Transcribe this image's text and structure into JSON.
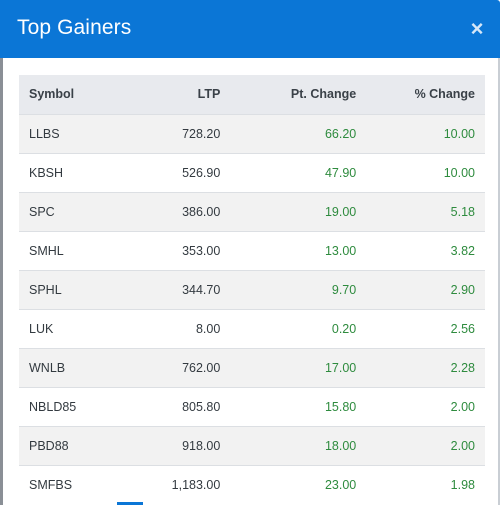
{
  "modal": {
    "title": "Top Gainers",
    "close_glyph": "×",
    "close_icon": "close-icon"
  },
  "table": {
    "headers": {
      "symbol": "Symbol",
      "ltp": "LTP",
      "pt_change": "Pt. Change",
      "pct_change": "% Change"
    },
    "rows": [
      {
        "symbol": "LLBS",
        "ltp": "728.20",
        "pt_change": "66.20",
        "pct_change": "10.00"
      },
      {
        "symbol": "KBSH",
        "ltp": "526.90",
        "pt_change": "47.90",
        "pct_change": "10.00"
      },
      {
        "symbol": "SPC",
        "ltp": "386.00",
        "pt_change": "19.00",
        "pct_change": "5.18"
      },
      {
        "symbol": "SMHL",
        "ltp": "353.00",
        "pt_change": "13.00",
        "pct_change": "3.82"
      },
      {
        "symbol": "SPHL",
        "ltp": "344.70",
        "pt_change": "9.70",
        "pct_change": "2.90"
      },
      {
        "symbol": "LUK",
        "ltp": "8.00",
        "pt_change": "0.20",
        "pct_change": "2.56"
      },
      {
        "symbol": "WNLB",
        "ltp": "762.00",
        "pt_change": "17.00",
        "pct_change": "2.28"
      },
      {
        "symbol": "NBLD85",
        "ltp": "805.80",
        "pt_change": "15.80",
        "pct_change": "2.00"
      },
      {
        "symbol": "PBD88",
        "ltp": "918.00",
        "pt_change": "18.00",
        "pct_change": "2.00"
      },
      {
        "symbol": "SMFBS",
        "ltp": "1,183.00",
        "pt_change": "23.00",
        "pct_change": "1.98"
      }
    ]
  },
  "colors": {
    "header_bg": "#0b76d6",
    "positive": "#2e8b3e",
    "table_header_bg": "#e8eaee",
    "row_stripe": "#f2f2f2"
  }
}
